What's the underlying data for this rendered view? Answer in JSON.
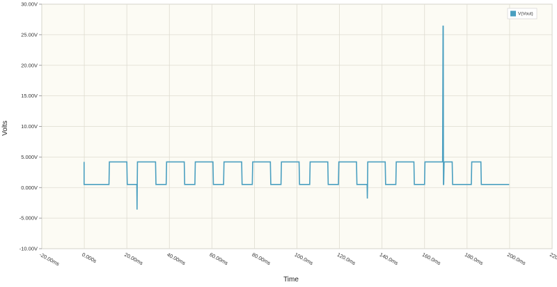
{
  "chart_data": {
    "type": "line",
    "title": "",
    "xlabel": "Time",
    "ylabel": "Volts",
    "xlim": [
      -20,
      220
    ],
    "ylim": [
      -10,
      30
    ],
    "x_ticks": [
      -20,
      0,
      20,
      40,
      60,
      80,
      100,
      120,
      140,
      160,
      180,
      200,
      220
    ],
    "x_tick_labels": [
      "-20.00ms",
      "0.000s",
      "20.00ms",
      "40.00ms",
      "60.00ms",
      "80.00ms",
      "100.0ms",
      "120.0ms",
      "140.0ms",
      "160.0ms",
      "180.0ms",
      "200.0ms",
      "220.0ms"
    ],
    "y_ticks": [
      -10,
      -5,
      0,
      5,
      10,
      15,
      20,
      25,
      30
    ],
    "y_tick_labels": [
      "-10.00V",
      "-5.000V",
      "0.000V",
      "5.000V",
      "10.00V",
      "15.00V",
      "20.00V",
      "25.00V",
      "30.00V"
    ],
    "grid": true,
    "legend_position": "top-right",
    "series": [
      {
        "name": "V(Vout)",
        "color": "#4a9fc0",
        "x_unit": "ms",
        "y_unit": "V",
        "x": [
          -0.1,
          -0.1,
          0,
          11.6,
          11.8,
          20,
          20.2,
          24.7,
          24.8,
          24.9,
          25,
          25.2,
          33.5,
          33.7,
          38.5,
          38.7,
          47,
          47.2,
          52,
          52.2,
          60.5,
          60.7,
          65.5,
          65.7,
          74,
          74.2,
          79,
          79.2,
          87.5,
          87.7,
          92.5,
          92.7,
          101,
          101.2,
          106,
          106.2,
          114.5,
          114.7,
          119.5,
          119.7,
          128,
          128.2,
          133,
          133.1,
          133.2,
          133.3,
          133.5,
          141.5,
          141.7,
          146.5,
          146.7,
          155,
          155.2,
          160,
          160.2,
          168.5,
          168.7,
          168.8,
          168.9,
          169,
          169.2,
          173,
          173.2,
          182,
          182.2,
          186.5,
          186.7,
          195,
          195.2,
          199.8
        ],
        "y": [
          4.2,
          0.5,
          0.5,
          0.5,
          4.2,
          4.2,
          0.5,
          0.5,
          -3.6,
          0.5,
          4.2,
          4.2,
          4.2,
          0.5,
          0.5,
          4.2,
          4.2,
          0.5,
          0.5,
          4.2,
          4.2,
          0.5,
          0.5,
          4.2,
          4.2,
          0.5,
          0.5,
          4.2,
          4.2,
          0.5,
          0.5,
          4.2,
          4.2,
          0.5,
          0.5,
          4.2,
          4.2,
          0.5,
          0.5,
          4.2,
          4.2,
          0.5,
          0.5,
          -1.8,
          0.5,
          4.2,
          4.2,
          4.2,
          0.5,
          0.5,
          4.2,
          4.2,
          0.5,
          0.5,
          4.2,
          4.2,
          26.4,
          26.4,
          0.5,
          0.5,
          4.2,
          4.2,
          0.5,
          0.5,
          4.2,
          4.2,
          0.5,
          0.5,
          0.5,
          0.5
        ]
      }
    ]
  },
  "colors": {
    "plot_background": "#fcfbf4",
    "grid": "#dedbd0",
    "axis": "#888888",
    "series": "#4a9fc0"
  }
}
